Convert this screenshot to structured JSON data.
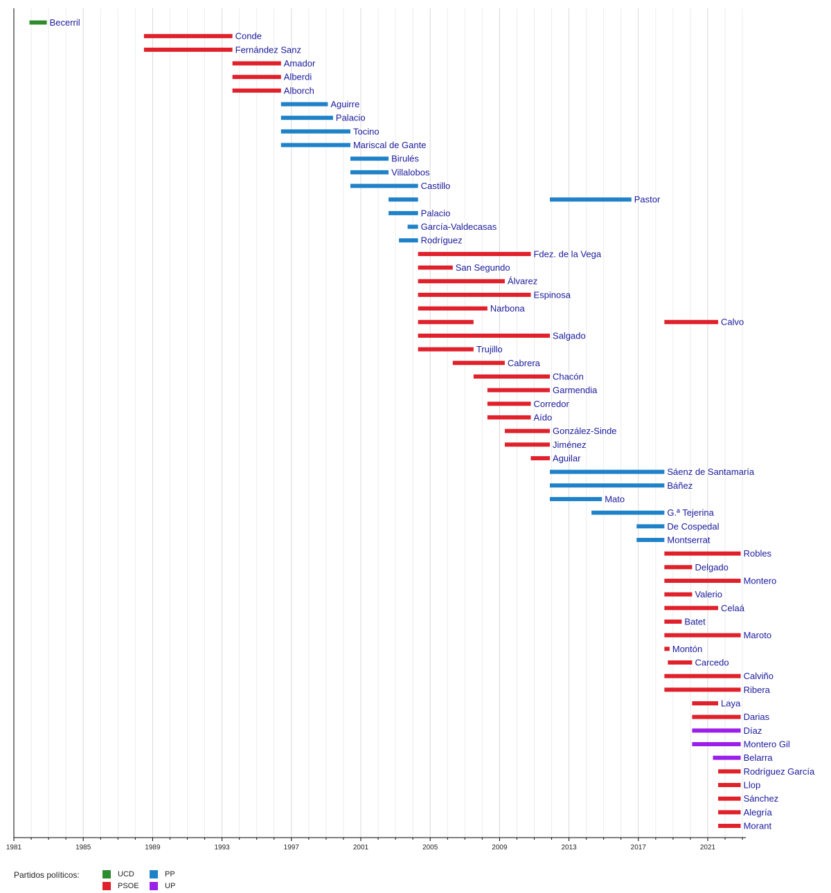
{
  "chart_data": {
    "type": "gantt",
    "x_range": [
      1981,
      2023.2
    ],
    "x_ticks": [
      1981,
      1985,
      1989,
      1993,
      1997,
      2001,
      2005,
      2009,
      2013,
      2017,
      2021
    ],
    "grid": true,
    "party_colors": {
      "UCD": "#2e8b2e",
      "PSOE": "#e0202a",
      "PP": "#1f82c8",
      "UP": "#9b1fe8"
    },
    "legend": {
      "title": "Partidos políticos:",
      "placement": "bottom-left",
      "entries": [
        {
          "party": "UCD",
          "label": "UCD"
        },
        {
          "party": "PSOE",
          "label": "PSOE"
        },
        {
          "party": "PP",
          "label": "PP"
        },
        {
          "party": "UP",
          "label": "UP"
        }
      ]
    },
    "rows": [
      {
        "label": "Becerril",
        "bars": [
          {
            "start": 1981.9,
            "end": 1982.9,
            "party": "UCD"
          }
        ]
      },
      {
        "label": "Conde",
        "bars": [
          {
            "start": 1988.5,
            "end": 1993.6,
            "party": "PSOE"
          }
        ]
      },
      {
        "label": "Fernández Sanz",
        "bars": [
          {
            "start": 1988.5,
            "end": 1993.6,
            "party": "PSOE"
          }
        ]
      },
      {
        "label": "Amador",
        "bars": [
          {
            "start": 1993.6,
            "end": 1996.4,
            "party": "PSOE"
          }
        ]
      },
      {
        "label": "Alberdi",
        "bars": [
          {
            "start": 1993.6,
            "end": 1996.4,
            "party": "PSOE"
          }
        ]
      },
      {
        "label": "Alborch",
        "bars": [
          {
            "start": 1993.6,
            "end": 1996.4,
            "party": "PSOE"
          }
        ]
      },
      {
        "label": "Aguirre",
        "bars": [
          {
            "start": 1996.4,
            "end": 1999.1,
            "party": "PP"
          }
        ]
      },
      {
        "label": "Palacio",
        "bars": [
          {
            "start": 1996.4,
            "end": 1999.4,
            "party": "PP"
          }
        ]
      },
      {
        "label": "Tocino",
        "bars": [
          {
            "start": 1996.4,
            "end": 2000.4,
            "party": "PP"
          }
        ]
      },
      {
        "label": "Mariscal de Gante",
        "bars": [
          {
            "start": 1996.4,
            "end": 2000.4,
            "party": "PP"
          }
        ]
      },
      {
        "label": "Birulés",
        "bars": [
          {
            "start": 2000.4,
            "end": 2002.6,
            "party": "PP"
          }
        ]
      },
      {
        "label": "Villalobos",
        "bars": [
          {
            "start": 2000.4,
            "end": 2002.6,
            "party": "PP"
          }
        ]
      },
      {
        "label": "Castillo",
        "bars": [
          {
            "start": 2000.4,
            "end": 2004.3,
            "party": "PP"
          }
        ]
      },
      {
        "label": "Pastor",
        "bars": [
          {
            "start": 2002.6,
            "end": 2004.3,
            "party": "PP"
          },
          {
            "start": 2011.9,
            "end": 2016.6,
            "party": "PP"
          }
        ]
      },
      {
        "label": "Palacio",
        "bars": [
          {
            "start": 2002.6,
            "end": 2004.3,
            "party": "PP"
          }
        ]
      },
      {
        "label": "García-Valdecasas",
        "bars": [
          {
            "start": 2003.7,
            "end": 2004.3,
            "party": "PP"
          }
        ]
      },
      {
        "label": "Rodríguez",
        "bars": [
          {
            "start": 2003.2,
            "end": 2004.3,
            "party": "PP"
          }
        ]
      },
      {
        "label": "Fdez. de la Vega",
        "bars": [
          {
            "start": 2004.3,
            "end": 2010.8,
            "party": "PSOE"
          }
        ]
      },
      {
        "label": "San Segundo",
        "bars": [
          {
            "start": 2004.3,
            "end": 2006.3,
            "party": "PSOE"
          }
        ]
      },
      {
        "label": "Álvarez",
        "bars": [
          {
            "start": 2004.3,
            "end": 2009.3,
            "party": "PSOE"
          }
        ]
      },
      {
        "label": "Espinosa",
        "bars": [
          {
            "start": 2004.3,
            "end": 2010.8,
            "party": "PSOE"
          }
        ]
      },
      {
        "label": "Narbona",
        "bars": [
          {
            "start": 2004.3,
            "end": 2008.3,
            "party": "PSOE"
          }
        ]
      },
      {
        "label": "Calvo",
        "bars": [
          {
            "start": 2004.3,
            "end": 2007.5,
            "party": "PSOE"
          },
          {
            "start": 2018.5,
            "end": 2021.6,
            "party": "PSOE"
          }
        ]
      },
      {
        "label": "Salgado",
        "bars": [
          {
            "start": 2004.3,
            "end": 2011.9,
            "party": "PSOE"
          }
        ]
      },
      {
        "label": "Trujillo",
        "bars": [
          {
            "start": 2004.3,
            "end": 2007.5,
            "party": "PSOE"
          }
        ]
      },
      {
        "label": "Cabrera",
        "bars": [
          {
            "start": 2006.3,
            "end": 2009.3,
            "party": "PSOE"
          }
        ]
      },
      {
        "label": "Chacón",
        "bars": [
          {
            "start": 2007.5,
            "end": 2011.9,
            "party": "PSOE"
          }
        ]
      },
      {
        "label": "Garmendia",
        "bars": [
          {
            "start": 2008.3,
            "end": 2011.9,
            "party": "PSOE"
          }
        ]
      },
      {
        "label": "Corredor",
        "bars": [
          {
            "start": 2008.3,
            "end": 2010.8,
            "party": "PSOE"
          }
        ]
      },
      {
        "label": "Aído",
        "bars": [
          {
            "start": 2008.3,
            "end": 2010.8,
            "party": "PSOE"
          }
        ]
      },
      {
        "label": "González-Sinde",
        "bars": [
          {
            "start": 2009.3,
            "end": 2011.9,
            "party": "PSOE"
          }
        ]
      },
      {
        "label": "Jiménez",
        "bars": [
          {
            "start": 2009.3,
            "end": 2011.9,
            "party": "PSOE"
          }
        ]
      },
      {
        "label": "Aguilar",
        "bars": [
          {
            "start": 2010.8,
            "end": 2011.9,
            "party": "PSOE"
          }
        ]
      },
      {
        "label": "Sáenz de Santamaría",
        "bars": [
          {
            "start": 2011.9,
            "end": 2018.5,
            "party": "PP"
          }
        ]
      },
      {
        "label": "Báñez",
        "bars": [
          {
            "start": 2011.9,
            "end": 2018.5,
            "party": "PP"
          }
        ]
      },
      {
        "label": "Mato",
        "bars": [
          {
            "start": 2011.9,
            "end": 2014.9,
            "party": "PP"
          }
        ]
      },
      {
        "label": "G.ª Tejerina",
        "bars": [
          {
            "start": 2014.3,
            "end": 2018.5,
            "party": "PP"
          }
        ]
      },
      {
        "label": "De Cospedal",
        "bars": [
          {
            "start": 2016.9,
            "end": 2018.5,
            "party": "PP"
          }
        ]
      },
      {
        "label": "Montserrat",
        "bars": [
          {
            "start": 2016.9,
            "end": 2018.5,
            "party": "PP"
          }
        ]
      },
      {
        "label": "Robles",
        "bars": [
          {
            "start": 2018.5,
            "end": 2022.9,
            "party": "PSOE"
          }
        ]
      },
      {
        "label": "Delgado",
        "bars": [
          {
            "start": 2018.5,
            "end": 2020.1,
            "party": "PSOE"
          }
        ]
      },
      {
        "label": "Montero",
        "bars": [
          {
            "start": 2018.5,
            "end": 2022.9,
            "party": "PSOE"
          }
        ]
      },
      {
        "label": "Valerio",
        "bars": [
          {
            "start": 2018.5,
            "end": 2020.1,
            "party": "PSOE"
          }
        ]
      },
      {
        "label": "Celaá",
        "bars": [
          {
            "start": 2018.5,
            "end": 2021.6,
            "party": "PSOE"
          }
        ]
      },
      {
        "label": "Batet",
        "bars": [
          {
            "start": 2018.5,
            "end": 2019.5,
            "party": "PSOE"
          }
        ]
      },
      {
        "label": "Maroto",
        "bars": [
          {
            "start": 2018.5,
            "end": 2022.9,
            "party": "PSOE"
          }
        ]
      },
      {
        "label": "Montón",
        "bars": [
          {
            "start": 2018.5,
            "end": 2018.8,
            "party": "PSOE"
          }
        ]
      },
      {
        "label": "Carcedo",
        "bars": [
          {
            "start": 2018.7,
            "end": 2020.1,
            "party": "PSOE"
          }
        ]
      },
      {
        "label": "Calviño",
        "bars": [
          {
            "start": 2018.5,
            "end": 2022.9,
            "party": "PSOE"
          }
        ]
      },
      {
        "label": "Ribera",
        "bars": [
          {
            "start": 2018.5,
            "end": 2022.9,
            "party": "PSOE"
          }
        ]
      },
      {
        "label": "Laya",
        "bars": [
          {
            "start": 2020.1,
            "end": 2021.6,
            "party": "PSOE"
          }
        ]
      },
      {
        "label": "Darias",
        "bars": [
          {
            "start": 2020.1,
            "end": 2022.9,
            "party": "PSOE"
          }
        ]
      },
      {
        "label": "Díaz",
        "bars": [
          {
            "start": 2020.1,
            "end": 2022.9,
            "party": "UP"
          }
        ]
      },
      {
        "label": "Montero Gil",
        "bars": [
          {
            "start": 2020.1,
            "end": 2022.9,
            "party": "UP"
          }
        ]
      },
      {
        "label": "Belarra",
        "bars": [
          {
            "start": 2021.3,
            "end": 2022.9,
            "party": "UP"
          }
        ]
      },
      {
        "label": "Rodríguez García",
        "bars": [
          {
            "start": 2021.6,
            "end": 2022.9,
            "party": "PSOE"
          }
        ]
      },
      {
        "label": "Llop",
        "bars": [
          {
            "start": 2021.6,
            "end": 2022.9,
            "party": "PSOE"
          }
        ]
      },
      {
        "label": "Sánchez",
        "bars": [
          {
            "start": 2021.6,
            "end": 2022.9,
            "party": "PSOE"
          }
        ]
      },
      {
        "label": "Alegría",
        "bars": [
          {
            "start": 2021.6,
            "end": 2022.9,
            "party": "PSOE"
          }
        ]
      },
      {
        "label": "Morant",
        "bars": [
          {
            "start": 2021.6,
            "end": 2022.9,
            "party": "PSOE"
          }
        ]
      }
    ]
  }
}
